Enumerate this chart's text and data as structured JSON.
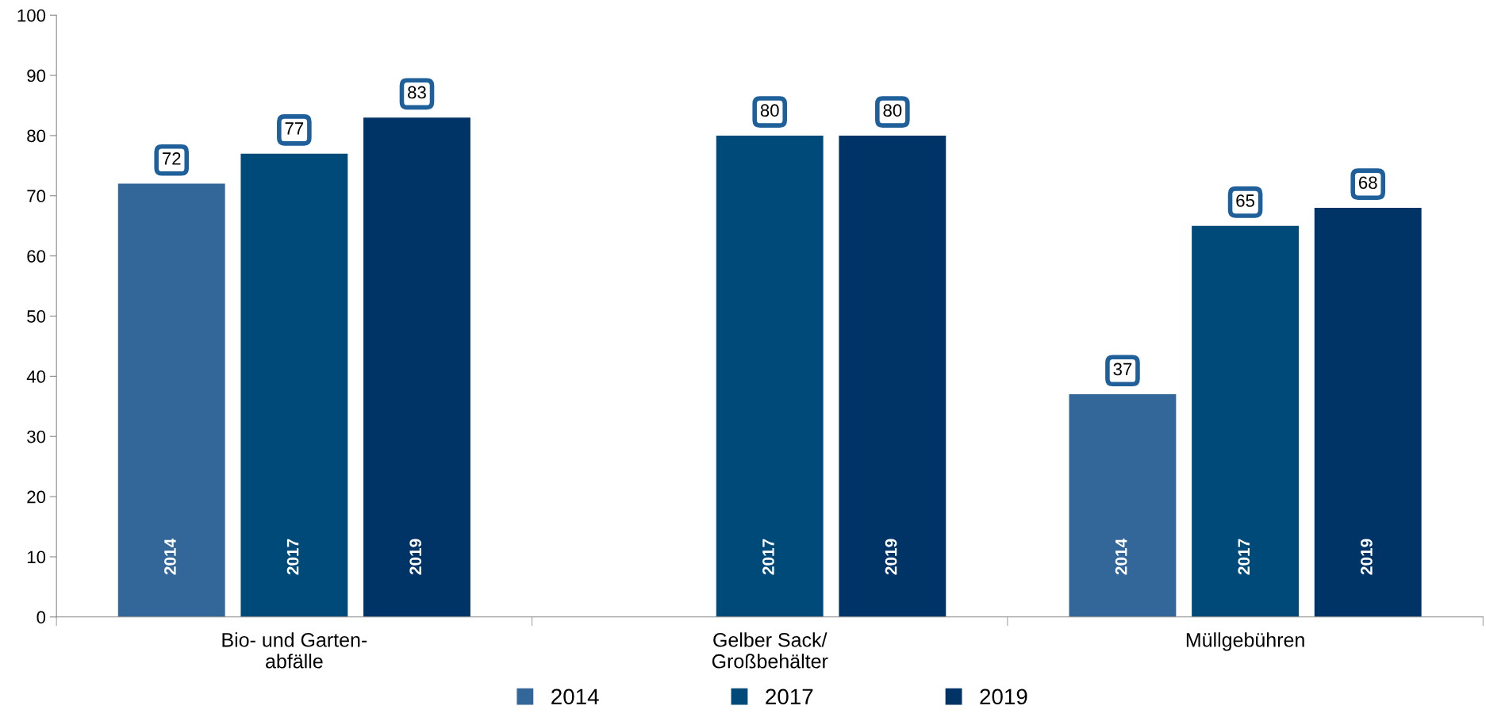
{
  "chart_data": {
    "type": "bar",
    "categories": [
      "Bio- und Garten-\nabfälle",
      "Gelber Sack/\nGroßbehälter",
      "Müllgebühren"
    ],
    "series": [
      {
        "name": "2014",
        "color": "#336699",
        "values": [
          72,
          null,
          37
        ]
      },
      {
        "name": "2017",
        "color": "#004a7a",
        "values": [
          77,
          80,
          65
        ]
      },
      {
        "name": "2019",
        "color": "#003366",
        "values": [
          83,
          80,
          68
        ]
      }
    ],
    "ylim": [
      0,
      100
    ],
    "yticks": [
      0,
      10,
      20,
      30,
      40,
      50,
      60,
      70,
      80,
      90,
      100
    ],
    "data_labels": true,
    "grid": false,
    "legend": "bottom"
  }
}
